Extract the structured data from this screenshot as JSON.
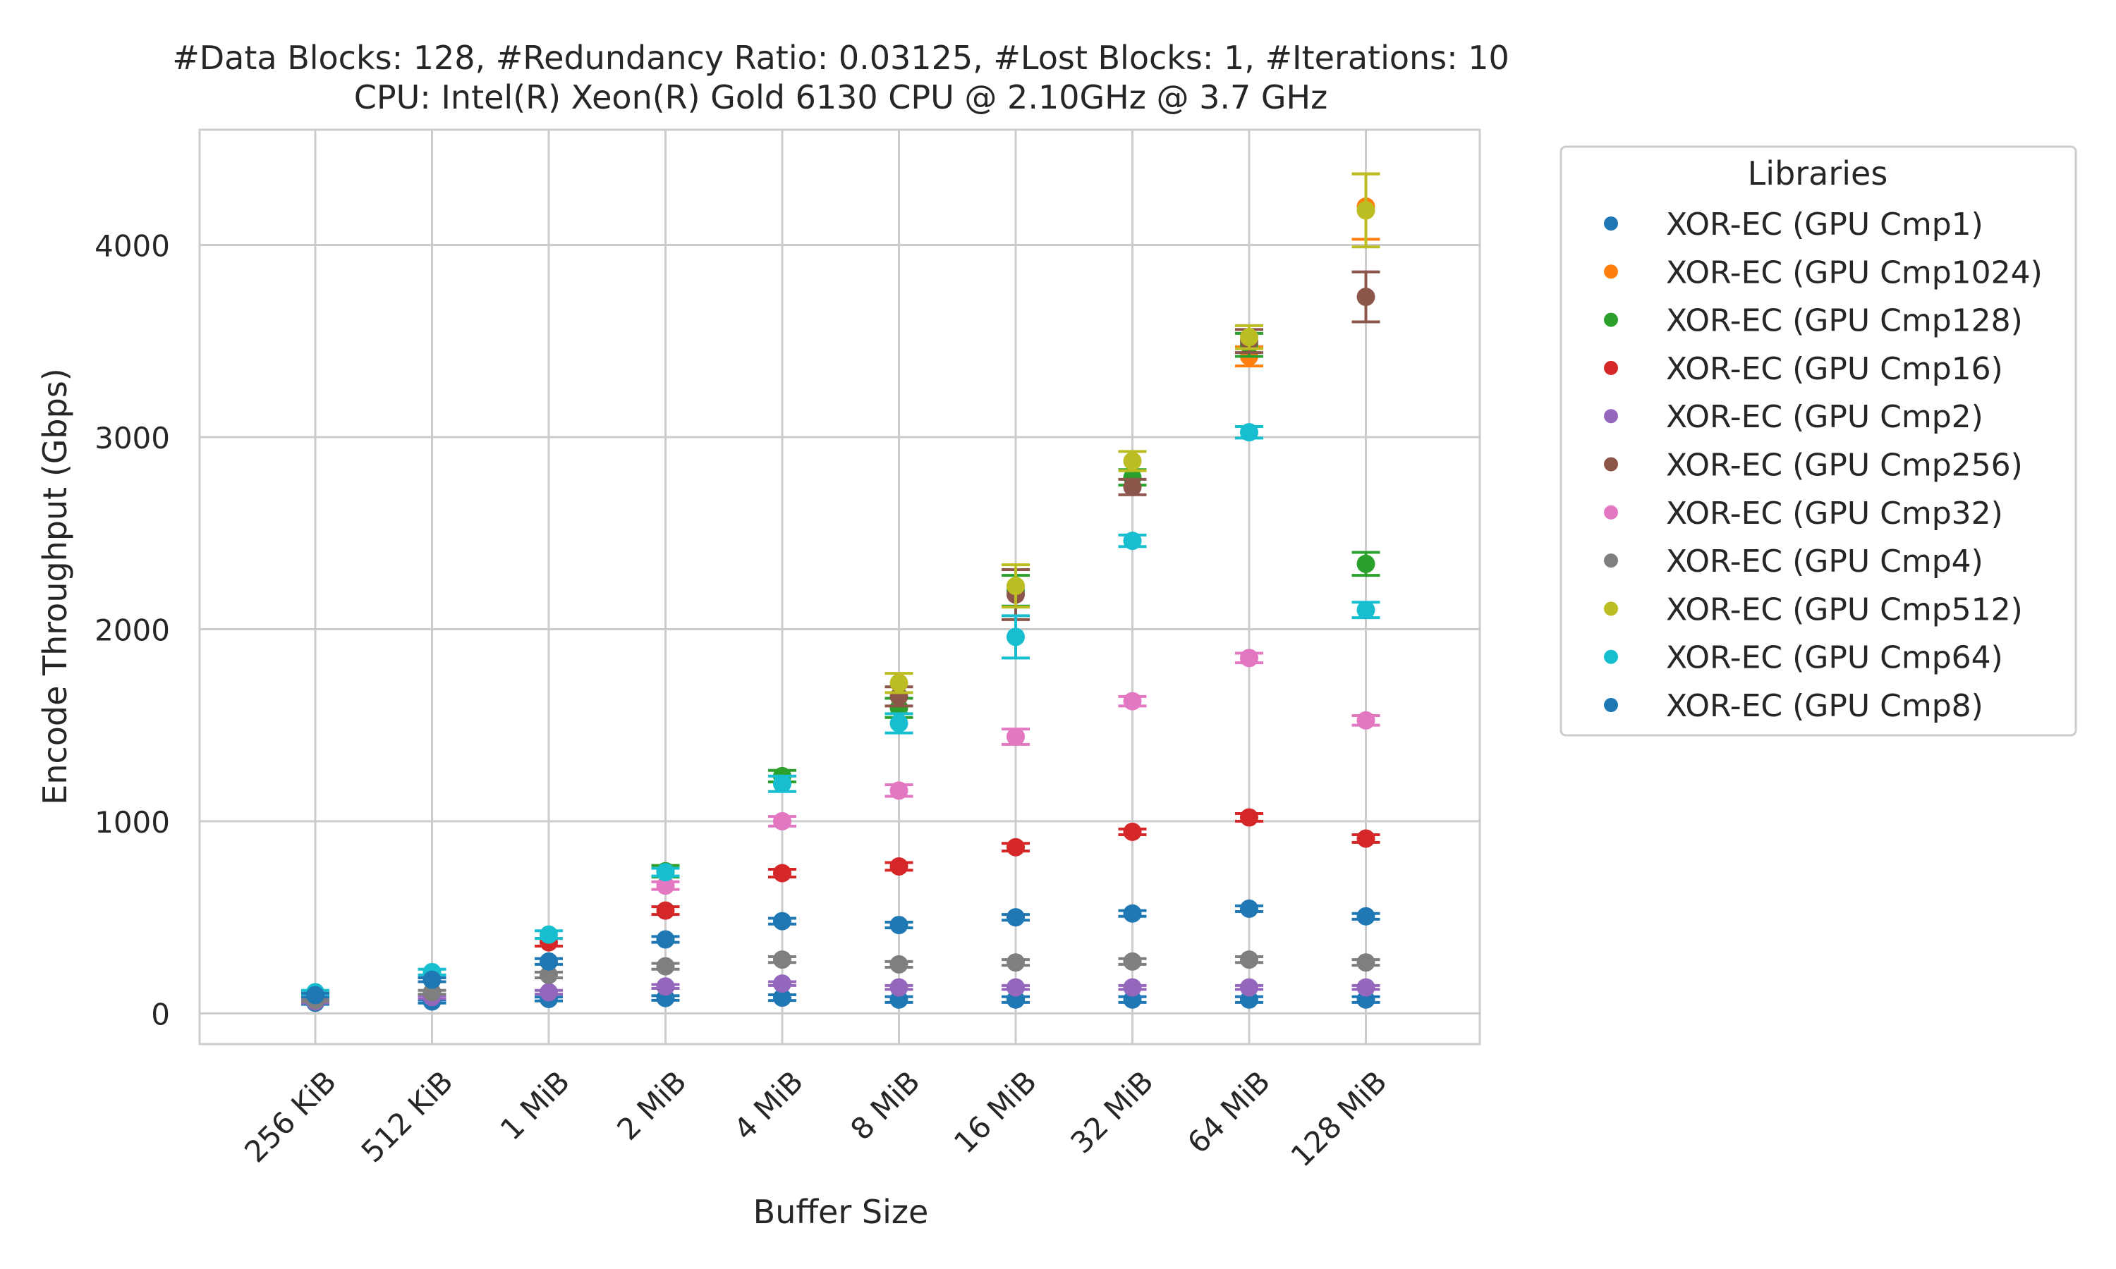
{
  "chart_data": {
    "type": "scatter",
    "title": [
      "#Data Blocks: 128, #Redundancy Ratio: 0.03125, #Lost Blocks: 1, #Iterations: 10",
      "CPU: Intel(R) Xeon(R) Gold 6130 CPU @ 2.10GHz @ 3.7 GHz"
    ],
    "xlabel": "Buffer Size",
    "ylabel": "Encode Throughput (Gbps)",
    "categories": [
      "256 KiB",
      "512 KiB",
      "1 MiB",
      "2 MiB",
      "4 MiB",
      "8 MiB",
      "16 MiB",
      "32 MiB",
      "64 MiB",
      "128 MiB"
    ],
    "ylim": [
      -160,
      4600
    ],
    "yticks": [
      0,
      1000,
      2000,
      3000,
      4000
    ],
    "grid": true,
    "legend": {
      "title": "Libraries",
      "placement": "outside-right"
    },
    "series": [
      {
        "name": "XOR-EC (GPU Cmp1)",
        "color": "#1f77b4",
        "values": [
          55,
          62,
          75,
          80,
          82,
          72,
          72,
          72,
          72,
          72
        ],
        "err": [
          8,
          8,
          10,
          12,
          15,
          15,
          15,
          15,
          15,
          15
        ]
      },
      {
        "name": "XOR-EC (GPU Cmp1024)",
        "color": "#ff7f0e",
        "values": [
          null,
          null,
          null,
          null,
          null,
          null,
          null,
          null,
          3420,
          4200
        ],
        "err": [
          0,
          0,
          0,
          0,
          0,
          0,
          0,
          0,
          50,
          170
        ]
      },
      {
        "name": "XOR-EC (GPU Cmp128)",
        "color": "#2ca02c",
        "values": [
          null,
          null,
          null,
          740,
          1235,
          1590,
          2200,
          2790,
          3480,
          2340
        ],
        "err": [
          0,
          0,
          0,
          30,
          30,
          50,
          80,
          40,
          60,
          60
        ]
      },
      {
        "name": "XOR-EC (GPU Cmp16)",
        "color": "#d62728",
        "values": [
          null,
          null,
          370,
          535,
          730,
          765,
          865,
          945,
          1020,
          910
        ],
        "err": [
          0,
          0,
          20,
          20,
          20,
          20,
          20,
          15,
          20,
          20
        ]
      },
      {
        "name": "XOR-EC (GPU Cmp2)",
        "color": "#9467bd",
        "values": [
          62,
          85,
          110,
          140,
          155,
          135,
          135,
          135,
          135,
          135
        ],
        "err": [
          8,
          8,
          10,
          10,
          10,
          10,
          10,
          10,
          10,
          10
        ]
      },
      {
        "name": "XOR-EC (GPU Cmp256)",
        "color": "#8c564b",
        "values": [
          null,
          null,
          null,
          null,
          null,
          1650,
          2180,
          2740,
          3500,
          3730
        ],
        "err": [
          0,
          0,
          0,
          0,
          0,
          50,
          130,
          40,
          60,
          130
        ]
      },
      {
        "name": "XOR-EC (GPU Cmp32)",
        "color": "#e377c2",
        "values": [
          null,
          null,
          null,
          665,
          1000,
          1160,
          1440,
          1625,
          1850,
          1525
        ],
        "err": [
          0,
          0,
          0,
          20,
          25,
          30,
          40,
          25,
          25,
          25
        ]
      },
      {
        "name": "XOR-EC (GPU Cmp4)",
        "color": "#7f7f7f",
        "values": [
          70,
          110,
          200,
          245,
          280,
          255,
          265,
          270,
          280,
          265
        ],
        "err": [
          8,
          10,
          15,
          15,
          15,
          15,
          15,
          15,
          15,
          15
        ]
      },
      {
        "name": "XOR-EC (GPU Cmp512)",
        "color": "#bcbd22",
        "values": [
          null,
          null,
          null,
          null,
          null,
          1720,
          2225,
          2875,
          3520,
          4180
        ],
        "err": [
          0,
          0,
          0,
          0,
          0,
          50,
          110,
          50,
          60,
          190
        ]
      },
      {
        "name": "XOR-EC (GPU Cmp64)",
        "color": "#17becf",
        "values": [
          110,
          215,
          410,
          735,
          1195,
          1510,
          1960,
          2460,
          3025,
          2100
        ],
        "err": [
          10,
          15,
          20,
          20,
          40,
          50,
          110,
          30,
          30,
          40
        ]
      },
      {
        "name": "XOR-EC (GPU Cmp8)",
        "color": "#1f77b4",
        "values": [
          95,
          175,
          270,
          385,
          480,
          460,
          500,
          520,
          545,
          505
        ],
        "err": [
          10,
          10,
          15,
          15,
          15,
          15,
          15,
          15,
          15,
          15
        ]
      }
    ]
  }
}
